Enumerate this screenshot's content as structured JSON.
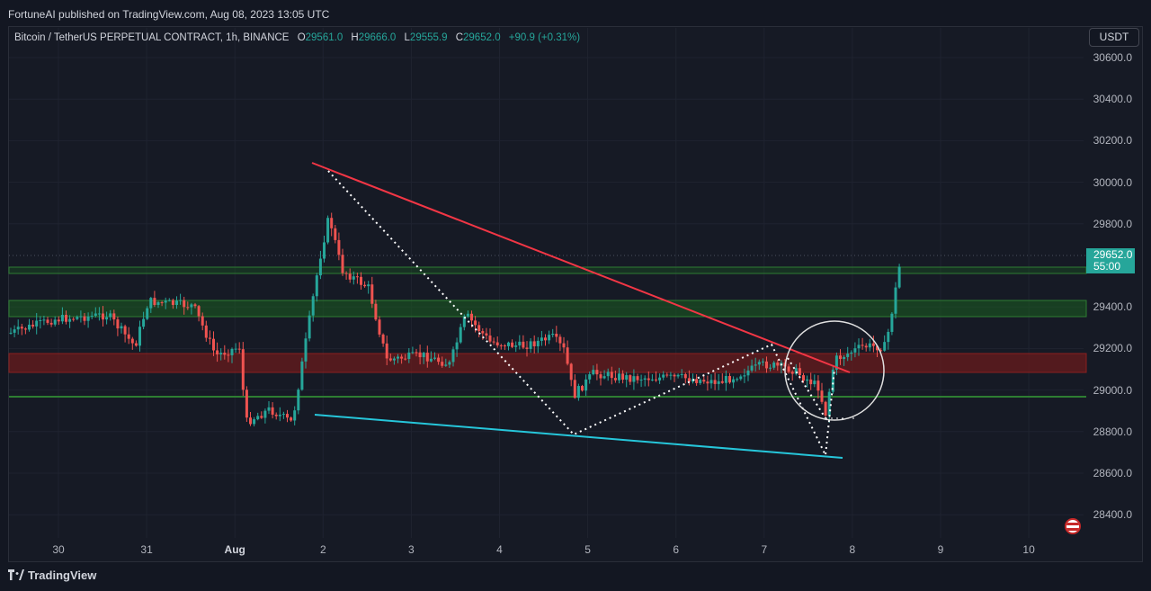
{
  "header": {
    "published_text": "FortuneAI published on TradingView.com, Aug 08, 2023 13:05 UTC"
  },
  "legend": {
    "symbol": "Bitcoin / TetherUS PERPETUAL CONTRACT, 1h, BINANCE",
    "open_label": "O",
    "open_value": "29561.0",
    "high_label": "H",
    "high_value": "29666.0",
    "low_label": "L",
    "low_value": "29555.9",
    "close_label": "C",
    "close_value": "29652.0",
    "change": "+90.9 (+0.31%)"
  },
  "toolbar": {
    "currency": "USDT"
  },
  "price_axis": [
    "30600.0",
    "30400.0",
    "30200.0",
    "30000.0",
    "29800.0",
    "29400.0",
    "29200.0",
    "29000.0",
    "28800.0",
    "28600.0",
    "28400.0"
  ],
  "current_price": {
    "price": "29652.0",
    "countdown": "55:00",
    "color": "#26a69a"
  },
  "time_axis": [
    {
      "label": "30",
      "bold": false
    },
    {
      "label": "31",
      "bold": false
    },
    {
      "label": "Aug",
      "bold": true
    },
    {
      "label": "2",
      "bold": false
    },
    {
      "label": "3",
      "bold": false
    },
    {
      "label": "4",
      "bold": false
    },
    {
      "label": "5",
      "bold": false
    },
    {
      "label": "6",
      "bold": false
    },
    {
      "label": "7",
      "bold": false
    },
    {
      "label": "8",
      "bold": false
    },
    {
      "label": "9",
      "bold": false
    },
    {
      "label": "10",
      "bold": false
    }
  ],
  "footer": {
    "brand": "TradingView"
  },
  "colors": {
    "up": "#26a69a",
    "down": "#ef5350",
    "support_zone": "#1b5e20",
    "resistance_zone": "#6d1b1b",
    "trend_red": "#f23645",
    "trend_blue": "#26c6da"
  }
}
